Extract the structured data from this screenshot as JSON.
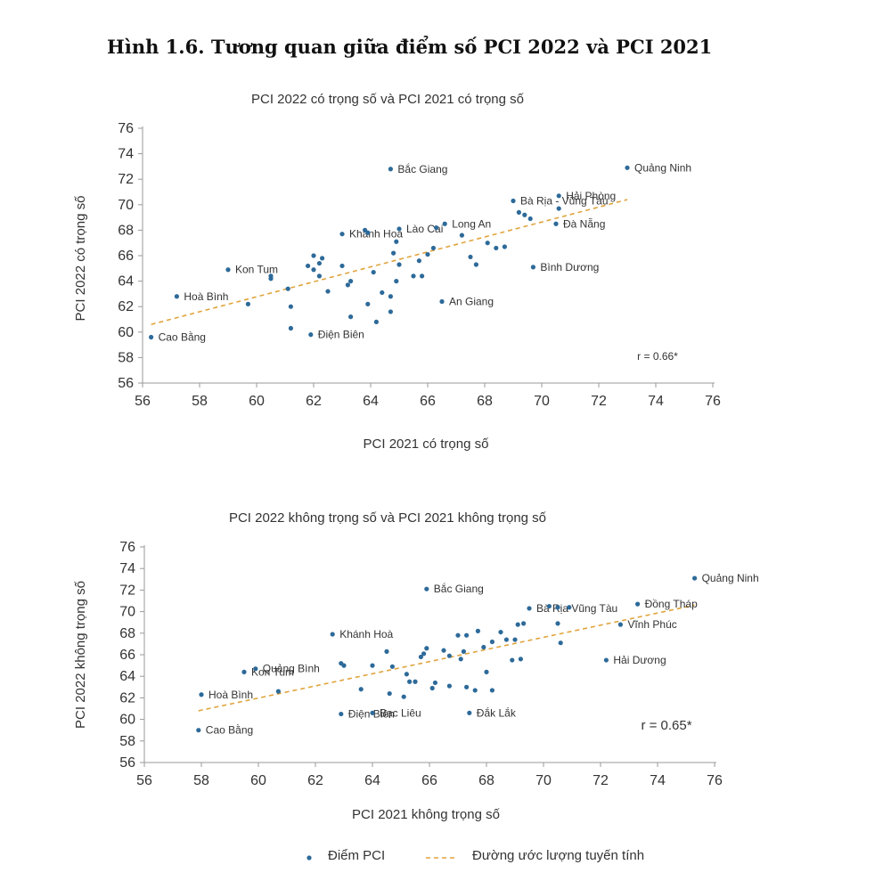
{
  "figure_title": "Hình 1.6. Tương quan giữa điểm số PCI 2022 và PCI 2021",
  "colors": {
    "point": "#2d6a99",
    "trend": "#e0a43c",
    "axis": "#999999",
    "text": "#333333"
  },
  "legend": {
    "points_label": "Điểm PCI",
    "trend_label": "Đường ước lượng tuyến tính"
  },
  "chart_data": [
    {
      "type": "scatter",
      "title": "PCI 2022 có trọng số và PCI 2021 có trọng số",
      "xlabel": "PCI 2021 có trọng số",
      "ylabel": "PCI 2022 có trọng số",
      "xlim": [
        56,
        76
      ],
      "ylim": [
        56,
        76
      ],
      "xticks": [
        56,
        58,
        60,
        62,
        64,
        66,
        68,
        70,
        72,
        74,
        76
      ],
      "yticks": [
        56,
        58,
        60,
        62,
        64,
        66,
        68,
        70,
        72,
        74,
        76
      ],
      "r_text": "r = 0.66*",
      "trend": {
        "x": [
          56.3,
          73.0
        ],
        "y": [
          60.6,
          70.4
        ]
      },
      "points": [
        {
          "x": 56.3,
          "y": 59.6,
          "label": "Cao Bằng"
        },
        {
          "x": 57.2,
          "y": 62.8,
          "label": "Hoà Bình"
        },
        {
          "x": 59.0,
          "y": 64.9,
          "label": "Kon Tum"
        },
        {
          "x": 59.7,
          "y": 62.2
        },
        {
          "x": 60.5,
          "y": 64.4
        },
        {
          "x": 60.5,
          "y": 64.2
        },
        {
          "x": 61.1,
          "y": 63.4
        },
        {
          "x": 61.2,
          "y": 62.0
        },
        {
          "x": 61.2,
          "y": 60.3
        },
        {
          "x": 61.8,
          "y": 65.2
        },
        {
          "x": 61.9,
          "y": 59.8,
          "label": "Điện Biên"
        },
        {
          "x": 62.0,
          "y": 64.9
        },
        {
          "x": 62.0,
          "y": 66.0
        },
        {
          "x": 62.2,
          "y": 65.4
        },
        {
          "x": 62.2,
          "y": 64.4
        },
        {
          "x": 62.3,
          "y": 65.8
        },
        {
          "x": 62.5,
          "y": 63.2
        },
        {
          "x": 63.0,
          "y": 67.7,
          "label": "Khánh Hoà"
        },
        {
          "x": 63.0,
          "y": 65.2
        },
        {
          "x": 63.2,
          "y": 63.7
        },
        {
          "x": 63.3,
          "y": 61.2
        },
        {
          "x": 63.3,
          "y": 64.0
        },
        {
          "x": 63.8,
          "y": 68.0
        },
        {
          "x": 63.9,
          "y": 67.8
        },
        {
          "x": 63.9,
          "y": 62.2
        },
        {
          "x": 64.1,
          "y": 64.7
        },
        {
          "x": 64.2,
          "y": 60.8
        },
        {
          "x": 64.4,
          "y": 63.1
        },
        {
          "x": 64.7,
          "y": 72.8,
          "label": "Bắc Giang"
        },
        {
          "x": 64.7,
          "y": 62.8
        },
        {
          "x": 64.7,
          "y": 61.6
        },
        {
          "x": 64.8,
          "y": 66.2
        },
        {
          "x": 64.9,
          "y": 67.1
        },
        {
          "x": 64.9,
          "y": 64.0
        },
        {
          "x": 65.0,
          "y": 65.3
        },
        {
          "x": 65.0,
          "y": 68.1,
          "label": "Lào Cai"
        },
        {
          "x": 65.5,
          "y": 64.4
        },
        {
          "x": 65.7,
          "y": 65.6
        },
        {
          "x": 65.8,
          "y": 64.4
        },
        {
          "x": 66.0,
          "y": 66.1
        },
        {
          "x": 66.2,
          "y": 66.6
        },
        {
          "x": 66.3,
          "y": 68.2
        },
        {
          "x": 66.5,
          "y": 62.4,
          "label": "An Giang"
        },
        {
          "x": 66.6,
          "y": 68.5,
          "label": "Long An"
        },
        {
          "x": 67.2,
          "y": 67.6
        },
        {
          "x": 67.5,
          "y": 65.9
        },
        {
          "x": 67.7,
          "y": 65.3
        },
        {
          "x": 68.1,
          "y": 67.0
        },
        {
          "x": 68.4,
          "y": 66.6
        },
        {
          "x": 68.7,
          "y": 66.7
        },
        {
          "x": 69.0,
          "y": 70.3,
          "label": "Bà Rịa - Vũng Tàu"
        },
        {
          "x": 69.2,
          "y": 69.4
        },
        {
          "x": 69.4,
          "y": 69.2
        },
        {
          "x": 69.6,
          "y": 68.9
        },
        {
          "x": 69.7,
          "y": 65.1,
          "label": "Bình Dương"
        },
        {
          "x": 70.5,
          "y": 68.5,
          "label": "Đà Nẵng"
        },
        {
          "x": 70.6,
          "y": 69.7
        },
        {
          "x": 70.6,
          "y": 70.7,
          "label": "Hải Phòng"
        },
        {
          "x": 73.0,
          "y": 72.9,
          "label": "Quảng Ninh"
        }
      ]
    },
    {
      "type": "scatter",
      "title": "PCI 2022 không trọng số và PCI 2021 không trọng số",
      "xlabel": "PCI 2021 không trọng số",
      "ylabel": "PCI 2022 không trọng số",
      "xlim": [
        56,
        76
      ],
      "ylim": [
        56,
        76
      ],
      "xticks": [
        56,
        58,
        60,
        62,
        64,
        66,
        68,
        70,
        72,
        74,
        76
      ],
      "yticks": [
        56,
        58,
        60,
        62,
        64,
        66,
        68,
        70,
        72,
        74,
        76
      ],
      "r_text": "r = 0.65*",
      "trend": {
        "x": [
          57.9,
          75.3
        ],
        "y": [
          60.8,
          70.6
        ]
      },
      "points": [
        {
          "x": 57.9,
          "y": 59.0,
          "label": "Cao Bằng"
        },
        {
          "x": 58.0,
          "y": 62.3,
          "label": "Hoà Bình"
        },
        {
          "x": 59.5,
          "y": 64.4,
          "label": "Kon Tum"
        },
        {
          "x": 59.9,
          "y": 64.7,
          "label": "Quảng Bình"
        },
        {
          "x": 60.7,
          "y": 62.6
        },
        {
          "x": 62.6,
          "y": 67.9,
          "label": "Khánh Hoà"
        },
        {
          "x": 62.9,
          "y": 65.2
        },
        {
          "x": 63.0,
          "y": 65.0
        },
        {
          "x": 62.9,
          "y": 60.5,
          "label": "Điện Biên"
        },
        {
          "x": 63.6,
          "y": 62.8
        },
        {
          "x": 64.0,
          "y": 65.0
        },
        {
          "x": 64.0,
          "y": 60.6,
          "label": "Bạc Liêu"
        },
        {
          "x": 64.5,
          "y": 66.3
        },
        {
          "x": 64.6,
          "y": 62.4
        },
        {
          "x": 64.7,
          "y": 64.9
        },
        {
          "x": 65.1,
          "y": 62.1
        },
        {
          "x": 65.2,
          "y": 64.2
        },
        {
          "x": 65.3,
          "y": 63.5
        },
        {
          "x": 65.5,
          "y": 63.5
        },
        {
          "x": 65.7,
          "y": 65.8
        },
        {
          "x": 65.8,
          "y": 66.1
        },
        {
          "x": 65.9,
          "y": 72.1,
          "label": "Bắc Giang"
        },
        {
          "x": 65.9,
          "y": 66.6
        },
        {
          "x": 66.1,
          "y": 62.9
        },
        {
          "x": 66.2,
          "y": 63.4
        },
        {
          "x": 66.5,
          "y": 66.4
        },
        {
          "x": 66.7,
          "y": 65.9
        },
        {
          "x": 66.7,
          "y": 63.1
        },
        {
          "x": 67.0,
          "y": 67.8
        },
        {
          "x": 67.1,
          "y": 65.6
        },
        {
          "x": 67.2,
          "y": 66.3
        },
        {
          "x": 67.3,
          "y": 67.8
        },
        {
          "x": 67.3,
          "y": 63.0
        },
        {
          "x": 67.4,
          "y": 60.6,
          "label": "Đắk Lắk"
        },
        {
          "x": 67.6,
          "y": 62.7
        },
        {
          "x": 67.7,
          "y": 68.2
        },
        {
          "x": 67.9,
          "y": 66.7
        },
        {
          "x": 68.0,
          "y": 64.4
        },
        {
          "x": 68.2,
          "y": 62.7
        },
        {
          "x": 68.2,
          "y": 67.2
        },
        {
          "x": 68.5,
          "y": 68.1
        },
        {
          "x": 68.7,
          "y": 67.4
        },
        {
          "x": 68.9,
          "y": 65.5
        },
        {
          "x": 69.0,
          "y": 67.4
        },
        {
          "x": 69.1,
          "y": 68.8
        },
        {
          "x": 69.2,
          "y": 65.6
        },
        {
          "x": 69.3,
          "y": 68.9
        },
        {
          "x": 69.5,
          "y": 70.3,
          "label": "Bà Rịa Vũng Tàu"
        },
        {
          "x": 70.2,
          "y": 70.5
        },
        {
          "x": 70.5,
          "y": 70.4
        },
        {
          "x": 70.5,
          "y": 68.9
        },
        {
          "x": 70.6,
          "y": 67.1
        },
        {
          "x": 70.9,
          "y": 70.4
        },
        {
          "x": 72.2,
          "y": 65.5,
          "label": "Hải Dương"
        },
        {
          "x": 72.7,
          "y": 68.8,
          "label": "Vĩnh Phúc"
        },
        {
          "x": 73.3,
          "y": 70.7,
          "label": "Đồng Tháp"
        },
        {
          "x": 75.3,
          "y": 73.1,
          "label": "Quảng Ninh"
        }
      ]
    }
  ]
}
